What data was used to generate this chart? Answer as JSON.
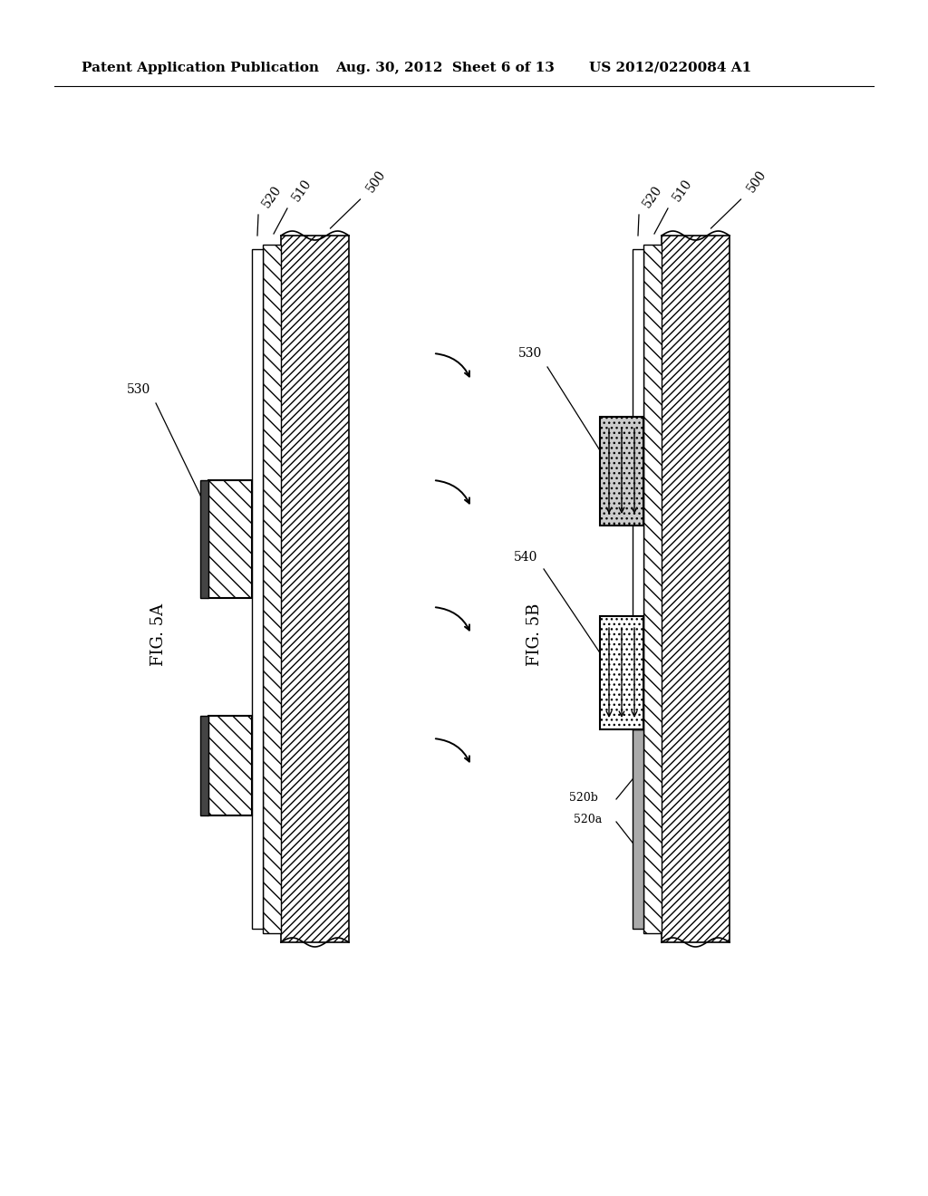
{
  "header_left": "Patent Application Publication",
  "header_mid": "Aug. 30, 2012  Sheet 6 of 13",
  "header_right": "US 2012/0220084 A1",
  "fig_a_label": "FIG. 5A",
  "fig_b_label": "FIG. 5B",
  "bg_color": "#ffffff"
}
